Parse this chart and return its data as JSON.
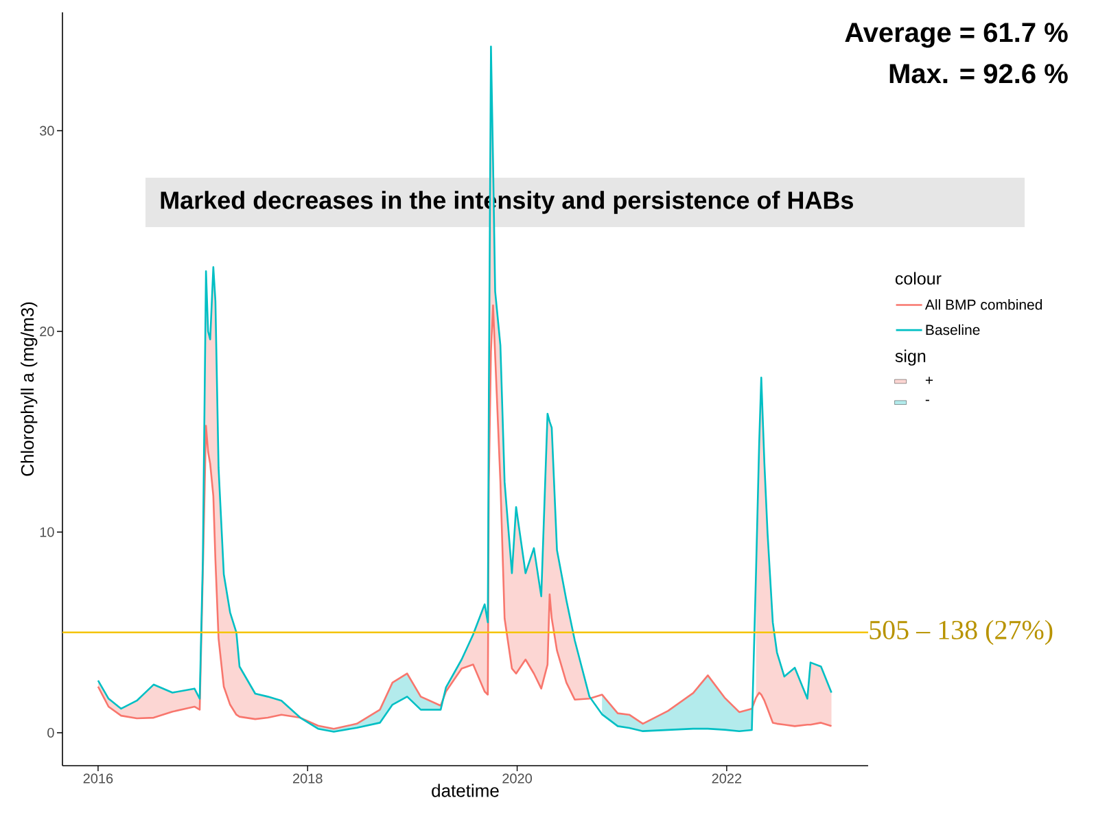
{
  "chart_data": {
    "type": "line",
    "xlabel": "datetime",
    "ylabel": "Chlorophyll a (mg/m3)",
    "legend_title": [
      "colour",
      "sign"
    ],
    "legend": "right",
    "xlim": [
      2015.66,
      2023.35
    ],
    "ylim": [
      -1.64,
      35.9
    ],
    "xticks": [
      2016,
      2018,
      2020,
      2022
    ],
    "yticks": [
      0,
      10,
      20,
      30
    ],
    "x": [
      2016.0,
      2016.1,
      2016.22,
      2016.37,
      2016.53,
      2016.71,
      2016.92,
      2016.97,
      2017.0,
      2017.03,
      2017.05,
      2017.07,
      2017.1,
      2017.12,
      2017.15,
      2017.2,
      2017.26,
      2017.32,
      2017.35,
      2017.5,
      2017.62,
      2017.75,
      2017.93,
      2018.1,
      2018.25,
      2018.47,
      2018.69,
      2018.81,
      2018.95,
      2019.08,
      2019.27,
      2019.32,
      2019.47,
      2019.58,
      2019.69,
      2019.72,
      2019.73,
      2019.75,
      2019.77,
      2019.79,
      2019.84,
      2019.88,
      2019.95,
      2019.99,
      2020.08,
      2020.16,
      2020.23,
      2020.29,
      2020.31,
      2020.33,
      2020.38,
      2020.47,
      2020.55,
      2020.69,
      2020.81,
      2020.96,
      2021.07,
      2021.2,
      2021.44,
      2021.68,
      2021.82,
      2021.98,
      2022.12,
      2022.24,
      2022.28,
      2022.31,
      2022.33,
      2022.36,
      2022.39,
      2022.44,
      2022.48,
      2022.55,
      2022.65,
      2022.77,
      2022.8,
      2022.9,
      2023.0
    ],
    "series": [
      {
        "name": "+",
        "type": "area",
        "color": "#fcd6d3",
        "values": [
          2.6,
          1.7,
          1.2,
          1.6,
          2.4,
          2.0,
          2.2,
          1.7,
          8.6,
          23.0,
          20.0,
          19.6,
          23.2,
          21.5,
          13.2,
          7.9,
          6.0,
          5.0,
          3.3,
          1.95,
          1.8,
          1.6,
          0.75,
          null,
          null,
          null,
          null,
          null,
          null,
          null,
          null,
          2.25,
          3.65,
          4.9,
          6.4,
          5.5,
          17.0,
          34.2,
          28.4,
          22.0,
          19.3,
          12.5,
          7.95,
          11.25,
          7.95,
          9.2,
          6.8,
          15.9,
          15.5,
          15.2,
          9.1,
          6.6,
          4.6,
          1.8,
          null,
          null,
          null,
          null,
          null,
          null,
          null,
          null,
          null,
          null,
          8.0,
          14.4,
          17.7,
          13.4,
          9.95,
          5.5,
          4.0,
          2.8,
          3.24,
          1.7,
          3.5,
          3.3,
          2.0
        ]
      },
      {
        "name": "-",
        "type": "area",
        "color": "#b3ebec",
        "values": [
          null,
          null,
          null,
          null,
          null,
          null,
          null,
          null,
          null,
          null,
          null,
          null,
          null,
          null,
          null,
          null,
          null,
          null,
          null,
          null,
          null,
          null,
          0.75,
          0.35,
          0.2,
          0.45,
          1.15,
          2.5,
          2.95,
          1.8,
          1.35,
          null,
          null,
          null,
          null,
          null,
          null,
          null,
          null,
          null,
          null,
          null,
          null,
          null,
          null,
          null,
          null,
          null,
          null,
          null,
          null,
          null,
          null,
          null,
          1.9,
          0.97,
          0.9,
          0.45,
          1.09,
          1.98,
          2.86,
          1.75,
          1.03,
          1.2,
          null,
          null,
          null,
          null,
          null,
          null,
          null,
          null,
          null,
          null,
          null,
          null,
          null
        ]
      },
      {
        "name": "All BMP combined",
        "color": "#f8766d",
        "values": [
          2.3,
          1.3,
          0.85,
          0.72,
          0.75,
          1.05,
          1.3,
          1.15,
          8.0,
          15.3,
          14.0,
          13.4,
          11.8,
          8.6,
          4.7,
          2.3,
          1.4,
          0.9,
          0.8,
          0.68,
          0.75,
          0.9,
          0.75,
          0.35,
          0.2,
          0.45,
          1.15,
          2.5,
          2.95,
          1.8,
          1.35,
          2.05,
          3.2,
          3.4,
          2.05,
          1.9,
          12.5,
          19.0,
          21.3,
          18.8,
          12.5,
          5.7,
          3.2,
          2.95,
          3.65,
          2.95,
          2.2,
          3.4,
          6.9,
          5.7,
          4.1,
          2.5,
          1.65,
          1.7,
          1.9,
          0.97,
          0.9,
          0.45,
          1.09,
          1.98,
          2.86,
          1.75,
          1.03,
          1.2,
          1.75,
          2.0,
          1.9,
          1.6,
          1.2,
          0.5,
          0.45,
          0.4,
          0.33,
          0.4,
          0.4,
          0.5,
          0.33
        ]
      },
      {
        "name": "Baseline",
        "color": "#00bfc4",
        "values": [
          2.6,
          1.7,
          1.2,
          1.6,
          2.4,
          2.0,
          2.2,
          1.7,
          8.6,
          23.0,
          20.0,
          19.6,
          23.2,
          21.5,
          13.2,
          7.9,
          6.0,
          5.0,
          3.3,
          1.95,
          1.8,
          1.6,
          0.75,
          0.2,
          0.05,
          0.25,
          0.5,
          1.4,
          1.8,
          1.15,
          1.15,
          2.25,
          3.65,
          4.9,
          6.4,
          5.5,
          17.0,
          34.2,
          28.4,
          22.0,
          19.3,
          12.5,
          7.95,
          11.25,
          7.95,
          9.2,
          6.8,
          15.9,
          15.5,
          15.2,
          9.1,
          6.6,
          4.6,
          1.8,
          0.92,
          0.33,
          0.24,
          0.08,
          0.14,
          0.2,
          0.2,
          0.15,
          0.08,
          0.14,
          8.0,
          14.4,
          17.7,
          13.4,
          9.95,
          5.5,
          4.0,
          2.8,
          3.24,
          1.7,
          3.5,
          3.3,
          2.0
        ]
      }
    ],
    "ref_lines": [
      {
        "axis": "y",
        "value": 5,
        "label": "505 – 138 (27%)",
        "color": "#f5c400"
      }
    ],
    "annotations": [
      "Average = 61.7 %",
      "Max. = 92.6 %",
      "Marked decreases in the intensity and persistence of HABs"
    ]
  }
}
